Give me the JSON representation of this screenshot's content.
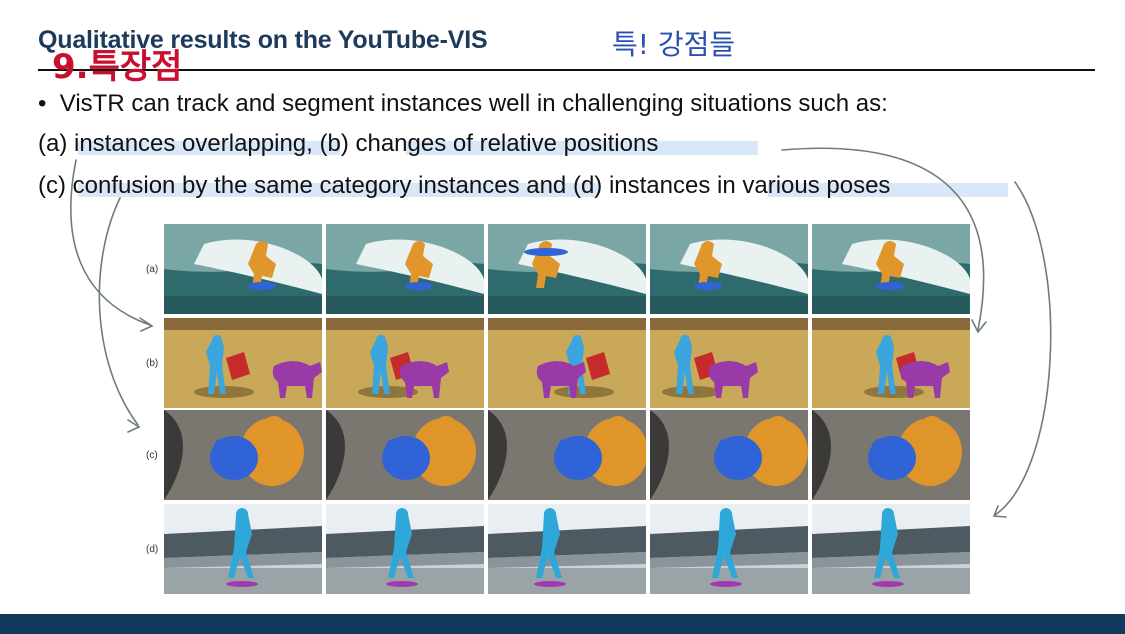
{
  "slide": {
    "title": "Qualitative results on the YouTube-VIS",
    "bullet": "•",
    "line1": "VisTR can track and segment instances well in challenging situations such as:",
    "line2": "(a) instances overlapping, (b) changes of relative positions",
    "line3": "(c) confusion by the same category instances and (d) instances in various poses"
  },
  "figure": {
    "rows": [
      {
        "label": "(a)",
        "scene": "surfing"
      },
      {
        "label": "(b)",
        "scene": "bullfight"
      },
      {
        "label": "(c)",
        "scene": "bears"
      },
      {
        "label": "(d)",
        "scene": "skateboard"
      }
    ],
    "frames_per_row": 5
  },
  "handwriting": {
    "title_overlay": "9.특장점",
    "title_note": "특! 강점들"
  },
  "colors": {
    "title": "#1d3a5c",
    "footer": "#0f3a5c",
    "annotation_red": "#c8102e",
    "annotation_blue": "#2a4fb0",
    "annotation_gray": "#6e7d7a",
    "highlight": "#aacdf0"
  }
}
